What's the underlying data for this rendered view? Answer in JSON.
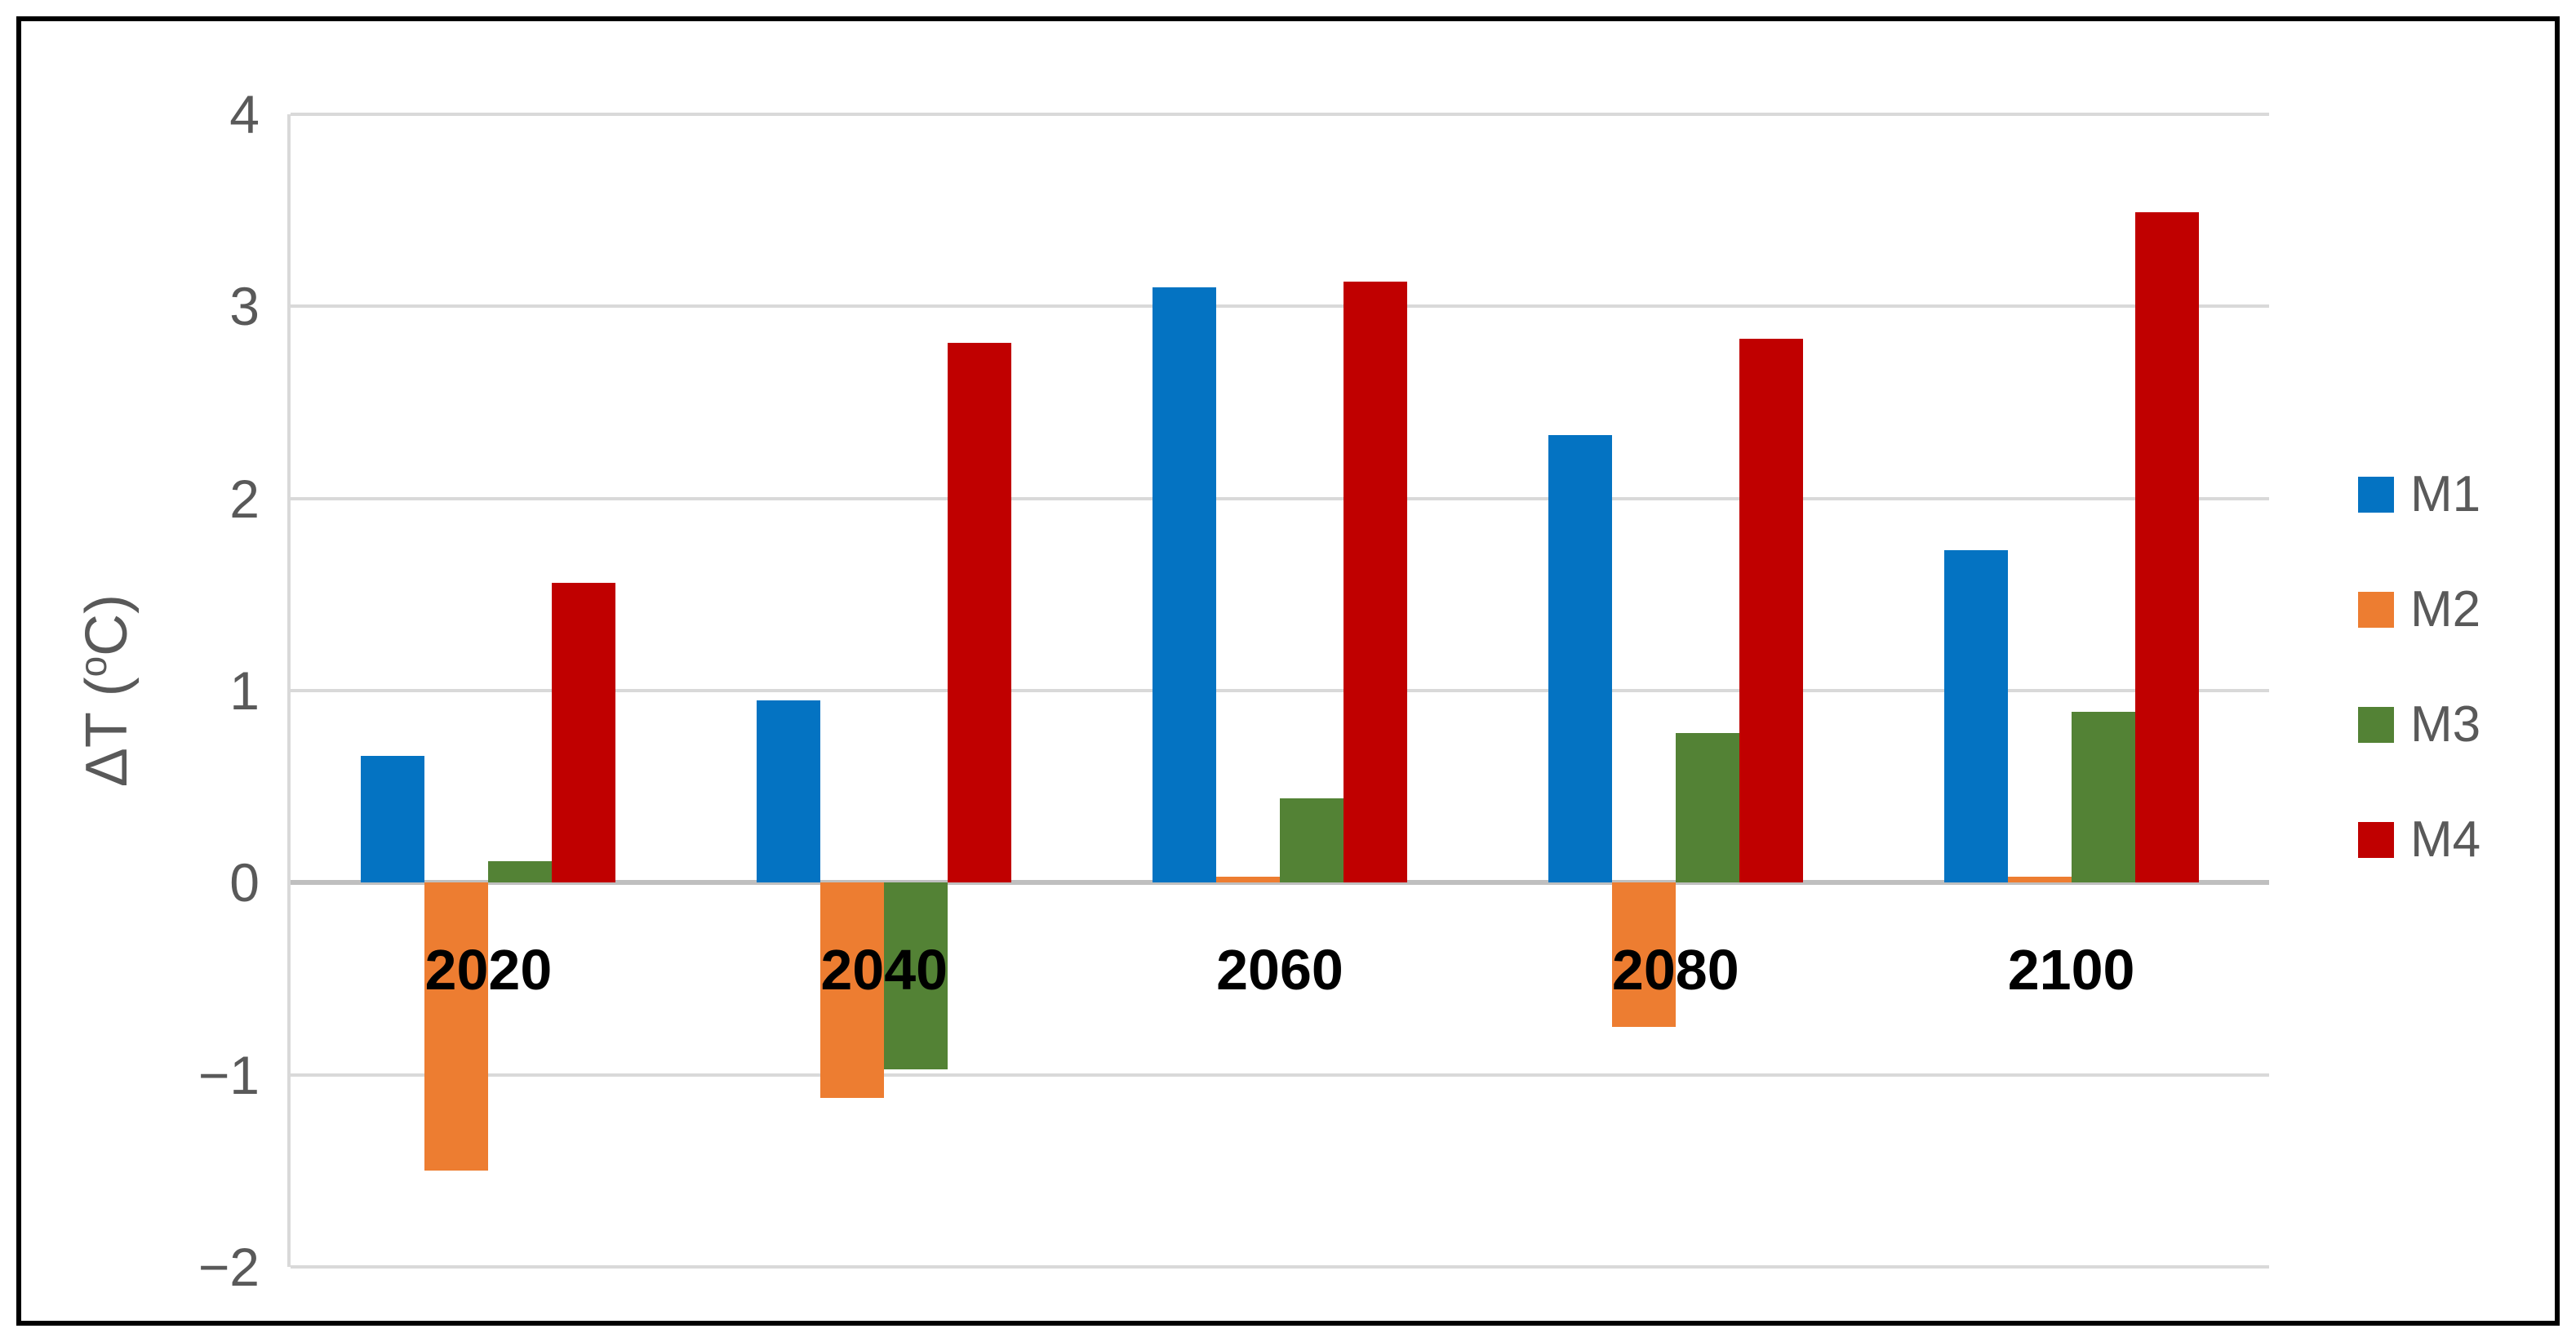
{
  "chart_data": {
    "type": "bar",
    "title": "",
    "categories": [
      "2020",
      "2040",
      "2060",
      "2080",
      "2100"
    ],
    "series": [
      {
        "name": "M1",
        "color": "#0473C2",
        "values": [
          0.66,
          0.95,
          3.1,
          2.33,
          1.73
        ]
      },
      {
        "name": "M2",
        "color": "#ED7D31",
        "values": [
          -1.5,
          -1.12,
          0.03,
          -0.75,
          0.03
        ]
      },
      {
        "name": "M3",
        "color": "#538235",
        "values": [
          0.11,
          -0.97,
          0.44,
          0.78,
          0.89
        ]
      },
      {
        "name": "M4",
        "color": "#C00000",
        "values": [
          1.56,
          2.81,
          3.13,
          2.83,
          3.49
        ]
      }
    ],
    "ylabel": {
      "pre": "ΔT (",
      "sup": "o",
      "post": "C)"
    },
    "yticks": [
      {
        "v": 4,
        "label": "4"
      },
      {
        "v": 3,
        "label": "3"
      },
      {
        "v": 2,
        "label": "2"
      },
      {
        "v": 1,
        "label": "1"
      },
      {
        "v": 0,
        "label": "0"
      },
      {
        "v": -1,
        "label": "−1"
      },
      {
        "v": -2,
        "label": "−2"
      }
    ],
    "ylim": [
      -2,
      4
    ],
    "grid": true,
    "legend_position": "right"
  },
  "style_colors": {
    "grid": "#D9D9D9",
    "zero_line": "#BFBFBF",
    "axis_text": "#595959",
    "category_text": "#000000",
    "border": "#000000"
  }
}
